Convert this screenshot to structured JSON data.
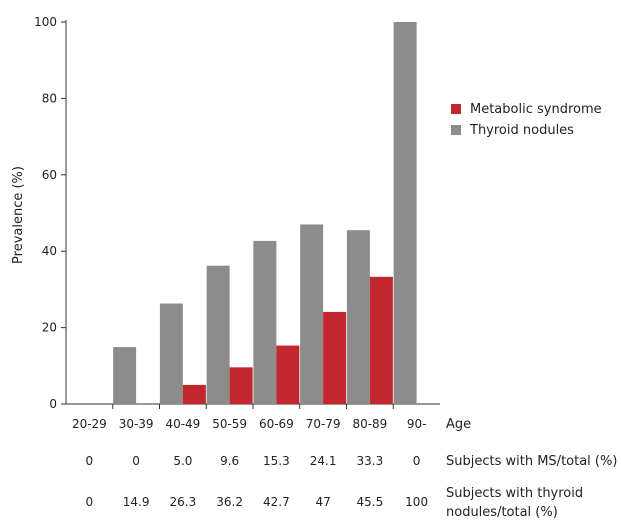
{
  "chart_data": {
    "type": "bar",
    "ylabel": "Prevalence (%)",
    "xlabel": "Age",
    "ylim": [
      0,
      100
    ],
    "yticks": [
      0,
      20,
      40,
      60,
      80,
      100
    ],
    "categories": [
      "20-29",
      "30-39",
      "40-49",
      "50-59",
      "60-69",
      "70-79",
      "80-89",
      "90-"
    ],
    "series": [
      {
        "name": "Thyroid nodules",
        "color": "#8c8c8c",
        "values": [
          0,
          14.9,
          26.3,
          36.2,
          42.7,
          47,
          45.5,
          100
        ]
      },
      {
        "name": "Metabolic syndrome",
        "color": "#c1272d",
        "values": [
          0,
          0,
          5.0,
          9.6,
          15.3,
          24.1,
          33.3,
          0
        ]
      }
    ],
    "legend": {
      "position": "right",
      "items": [
        {
          "label": "Metabolic syndrome",
          "color": "#c1272d"
        },
        {
          "label": "Thyroid nodules",
          "color": "#8c8c8c"
        }
      ]
    },
    "table_rows": [
      {
        "label_lines": [
          "Subjects with MS/total (%)"
        ],
        "values": [
          "0",
          "0",
          "5.0",
          "9.6",
          "15.3",
          "24.1",
          "33.3",
          "0"
        ]
      },
      {
        "label_lines": [
          "Subjects with thyroid",
          "nodules/total (%)"
        ],
        "values": [
          "0",
          "14.9",
          "26.3",
          "36.2",
          "42.7",
          "47",
          "45.5",
          "100"
        ]
      }
    ],
    "grid": false
  }
}
